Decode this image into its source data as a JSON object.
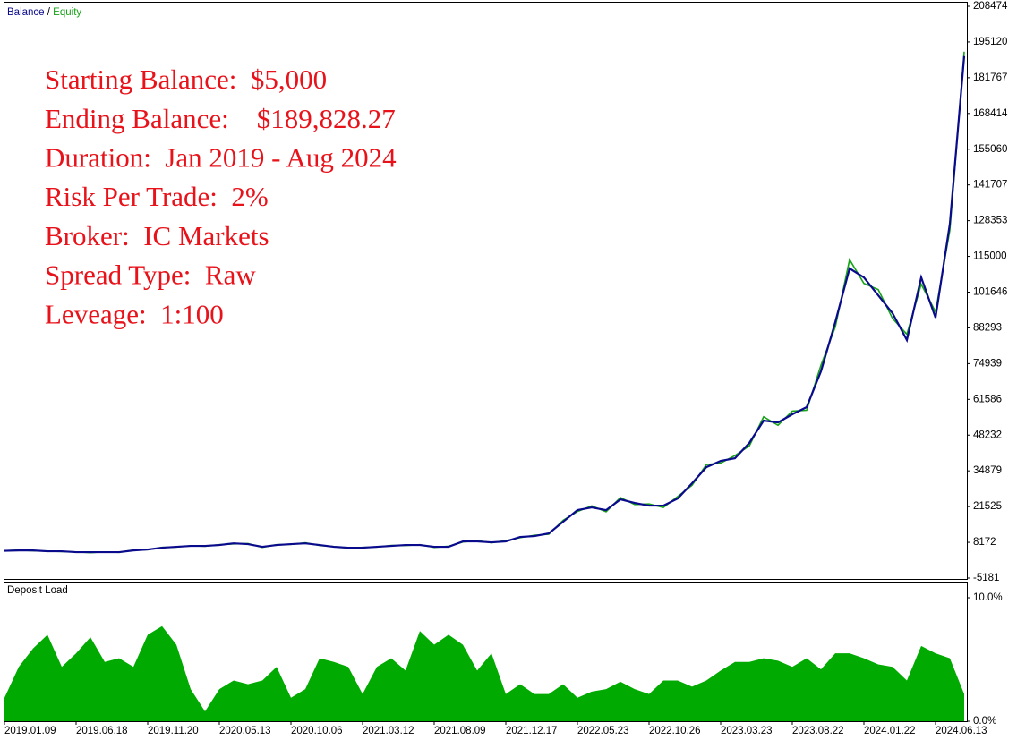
{
  "chart_data": [
    {
      "type": "line",
      "legend_separator": "/",
      "annotations": [
        "Starting Balance:  $5,000",
        "Ending Balance:    $189,828.27",
        "Duration:  Jan 2019 - Aug 2024",
        "Risk Per Trade:  2%",
        "Broker:  IC Markets",
        "Spread Type:  Raw",
        "Leveage:  1:100"
      ],
      "ylim": [
        -5181,
        208474
      ],
      "yticks": [
        208474,
        195120,
        181767,
        168414,
        155060,
        141707,
        128353,
        115000,
        101646,
        88293,
        74939,
        61586,
        48232,
        34879,
        21525,
        8172,
        -5181
      ],
      "series": [
        {
          "name": "Balance",
          "color": "#0a0a8c",
          "values": [
            5000,
            5150,
            5150,
            4830,
            4830,
            4500,
            4500,
            4500,
            4500,
            5150,
            5500,
            6160,
            6500,
            6830,
            6830,
            7170,
            7800,
            7500,
            6500,
            7170,
            7500,
            7800,
            7170,
            6500,
            6160,
            6160,
            6500,
            6830,
            7170,
            7170,
            6500,
            6500,
            8500,
            8500,
            8170,
            8500,
            10180,
            10510,
            11500,
            15860,
            20200,
            21200,
            20200,
            24220,
            22880,
            21880,
            21880,
            24550,
            30230,
            36250,
            38600,
            39600,
            45300,
            53650,
            52980,
            56000,
            58670,
            72040,
            90430,
            110500,
            107150,
            100460,
            93770,
            83740,
            107150,
            92110,
            127210,
            189828
          ]
        },
        {
          "name": "Equity",
          "color": "#17a317",
          "values": [
            5000,
            5300,
            5000,
            4900,
            4700,
            4600,
            4300,
            4600,
            4400,
            5300,
            5400,
            6300,
            6400,
            6900,
            6700,
            7300,
            7600,
            7700,
            6300,
            7300,
            7400,
            8000,
            7000,
            6600,
            6000,
            6300,
            6400,
            7000,
            7000,
            7300,
            6300,
            6700,
            8300,
            8800,
            8000,
            8800,
            9900,
            10800,
            11200,
            16400,
            19700,
            21800,
            19600,
            24900,
            22300,
            22500,
            21200,
            25300,
            29500,
            37200,
            37800,
            40600,
            44200,
            55100,
            51900,
            57200,
            57500,
            74300,
            88600,
            113800,
            104900,
            102600,
            91800,
            85900,
            104600,
            94300,
            124800,
            191500
          ]
        }
      ]
    },
    {
      "type": "area",
      "title": "Deposit Load",
      "color": "#00aa00",
      "ylim": [
        0,
        10
      ],
      "yticks": [
        {
          "value": 10,
          "label": "10.0%"
        },
        {
          "value": 0,
          "label": "0.0%"
        }
      ],
      "categories": [
        "2019.01.09",
        null,
        null,
        null,
        null,
        "2019.06.18",
        null,
        null,
        null,
        null,
        "2019.11.20",
        null,
        null,
        null,
        null,
        "2020.05.13",
        null,
        null,
        null,
        null,
        "2020.10.06",
        null,
        null,
        null,
        null,
        "2021.03.12",
        null,
        null,
        null,
        null,
        "2021.08.09",
        null,
        null,
        null,
        null,
        "2021.12.17",
        null,
        null,
        null,
        null,
        "2022.05.23",
        null,
        null,
        null,
        null,
        "2022.10.26",
        null,
        null,
        null,
        null,
        "2023.03.23",
        null,
        null,
        null,
        null,
        "2023.08.22",
        null,
        null,
        null,
        null,
        "2024.01.22",
        null,
        null,
        null,
        null,
        "2024.06.13",
        null,
        null
      ],
      "values": [
        1.9,
        4.4,
        5.9,
        7.0,
        4.4,
        5.5,
        6.8,
        4.8,
        5.1,
        4.4,
        7.0,
        7.7,
        6.2,
        2.6,
        0.8,
        2.6,
        3.3,
        3.0,
        3.3,
        4.4,
        1.9,
        2.6,
        5.1,
        4.8,
        4.4,
        2.2,
        4.4,
        5.1,
        4.1,
        7.3,
        6.2,
        7.0,
        6.2,
        4.1,
        5.5,
        2.2,
        3.0,
        2.2,
        2.2,
        3.0,
        1.9,
        2.4,
        2.6,
        3.2,
        2.6,
        2.2,
        3.3,
        3.3,
        2.8,
        3.3,
        4.1,
        4.8,
        4.8,
        5.1,
        4.9,
        4.4,
        5.1,
        4.2,
        5.5,
        5.5,
        5.1,
        4.6,
        4.4,
        3.3,
        6.1,
        5.5,
        5.1,
        2.2
      ]
    }
  ]
}
